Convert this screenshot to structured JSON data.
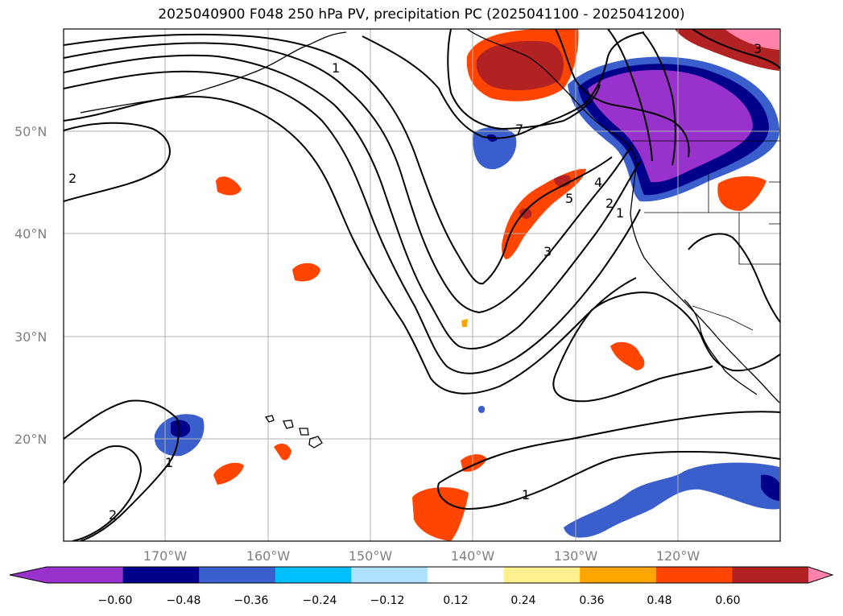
{
  "title": "2025040900 F048 250 hPa PV, precipitation PC (2025041100 - 2025041200)",
  "lat_labels": [
    "50°N",
    "40°N",
    "30°N",
    "20°N"
  ],
  "lon_labels": [
    "170°W",
    "160°W",
    "150°W",
    "140°W",
    "130°W",
    "120°W"
  ],
  "contour_labels": [
    "2",
    "2",
    "1",
    "1",
    "7",
    "5",
    "4",
    "3",
    "2",
    "1",
    "1",
    "3"
  ],
  "colorbar": {
    "ticks": [
      "−0.60",
      "−0.48",
      "−0.36",
      "−0.24",
      "−0.12",
      "0.12",
      "0.24",
      "0.36",
      "0.48",
      "0.60"
    ],
    "colors": [
      "#9932cc",
      "#00008b",
      "#3a5fcd",
      "#00bfff",
      "#b0e2ff",
      "#ffffff",
      "#fff08f",
      "#ffa500",
      "#ff4500",
      "#b22222",
      "#ff82ab"
    ]
  }
}
